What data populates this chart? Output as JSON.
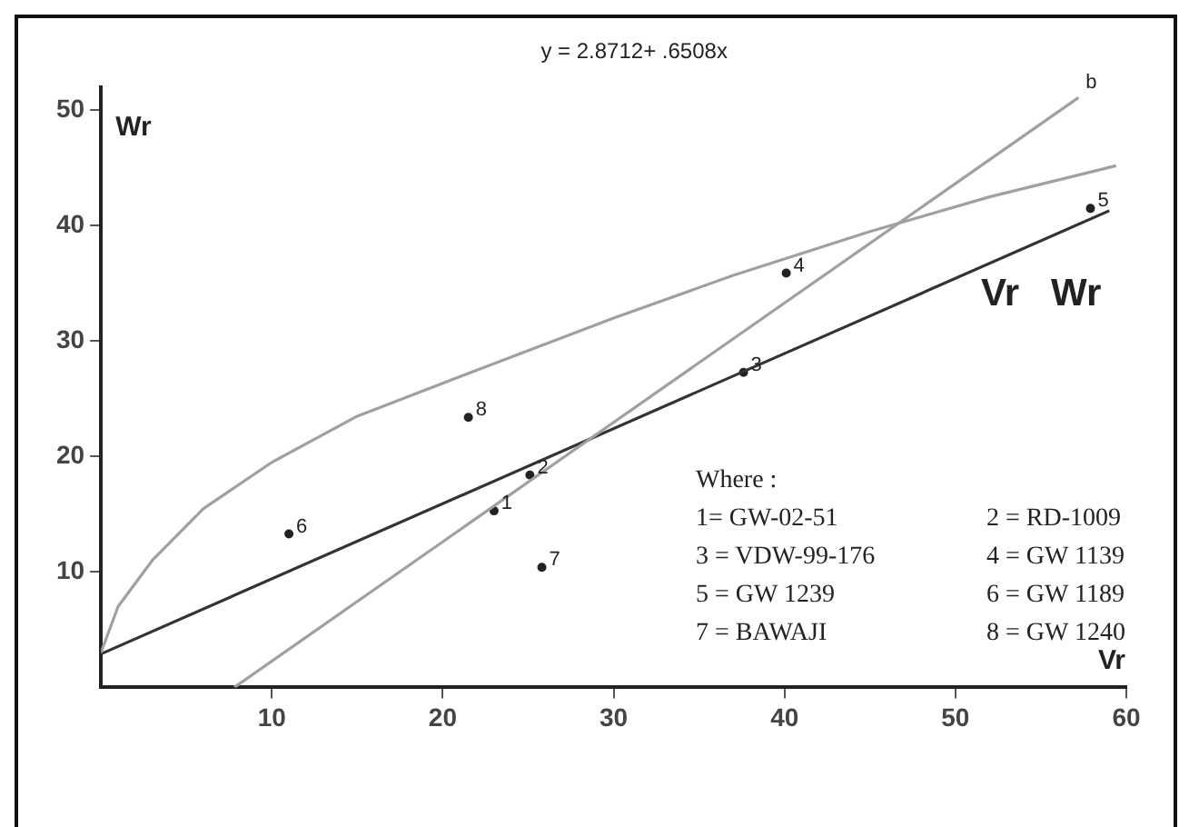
{
  "chart_data": {
    "type": "scatter",
    "title": "Vr   Wr",
    "xlabel": "Vr",
    "ylabel": "Wr",
    "xlim": [
      0,
      60
    ],
    "ylim": [
      0,
      52
    ],
    "xticks": [
      10,
      20,
      30,
      40,
      50,
      60
    ],
    "yticks": [
      10,
      20,
      30,
      40,
      50
    ],
    "grid": false,
    "legend": false,
    "marker": "circle",
    "series": [
      {
        "type": "line",
        "marker": "none",
        "color": "#a0a0a0",
        "x": [
          0,
          1,
          3,
          6,
          10,
          15,
          22,
          30,
          37,
          45,
          52,
          59.4
        ],
        "values": [
          3,
          7,
          11,
          15.5,
          19.5,
          23.5,
          27.5,
          32,
          35.7,
          39.5,
          42.5,
          45.2
        ]
      },
      {
        "type": "line",
        "marker": "none",
        "color": "#a0a0a0",
        "x": [
          7.8,
          57.2
        ],
        "values": [
          0,
          51.1
        ]
      },
      {
        "type": "line",
        "marker": "none",
        "color": "#333333",
        "x": [
          0,
          59
        ],
        "values": [
          2.9,
          41.3
        ]
      },
      {
        "color": "#222222",
        "x": [
          23.0,
          25.1,
          37.6,
          40.1,
          57.9,
          11.0,
          25.8,
          21.5
        ],
        "values": [
          15.3,
          18.4,
          27.3,
          35.9,
          41.5,
          13.3,
          10.4,
          23.4
        ]
      }
    ],
    "annotations": [
      "y = 2.8712+ .6508x",
      "Where :",
      "1= GW-02-51",
      "2 = RD-1009",
      "3 = VDW-99-176",
      "4 = GW 1139",
      "5 = GW 1239",
      "6 = GW 1189",
      "7 = BAWAJI",
      "8 = GW 1240",
      {
        "text": "1",
        "x": 23.0,
        "y": 15.3
      },
      {
        "text": "2",
        "x": 25.1,
        "y": 18.4
      },
      {
        "text": "3",
        "x": 37.6,
        "y": 27.3
      },
      {
        "text": "4",
        "x": 40.1,
        "y": 35.9
      },
      {
        "text": "5",
        "x": 57.9,
        "y": 41.5
      },
      {
        "text": "6",
        "x": 11.0,
        "y": 13.3
      },
      {
        "text": "7",
        "x": 25.8,
        "y": 10.4
      },
      {
        "text": "8",
        "x": 21.5,
        "y": 23.4
      },
      {
        "text": "b",
        "x": 57.2,
        "y": 51.1
      }
    ]
  }
}
